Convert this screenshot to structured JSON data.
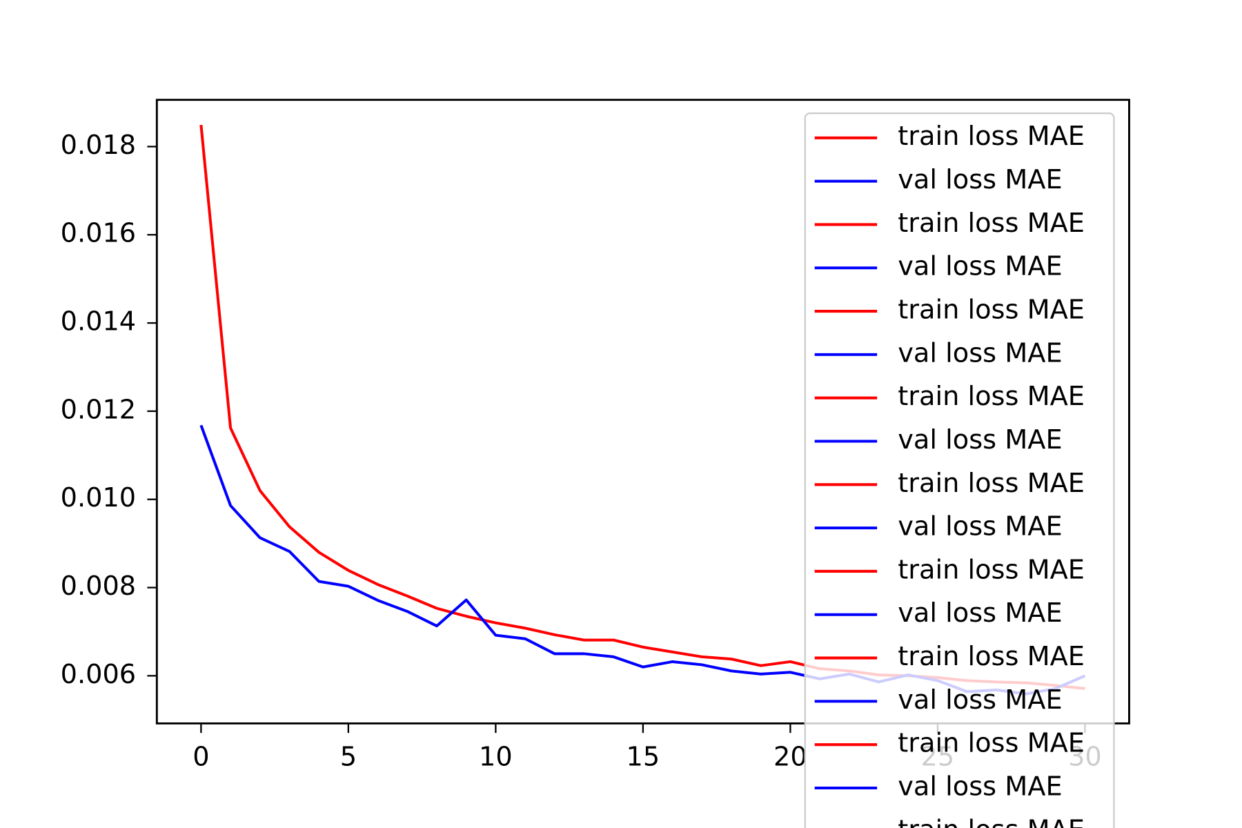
{
  "chart_data": {
    "type": "line",
    "x": [
      0,
      1,
      2,
      3,
      4,
      5,
      6,
      7,
      8,
      9,
      10,
      11,
      12,
      13,
      14,
      15,
      16,
      17,
      18,
      19,
      20,
      21,
      22,
      23,
      24,
      25,
      26,
      27,
      28,
      29,
      30
    ],
    "series": [
      {
        "name": "train loss MAE",
        "color": "#ff0000",
        "values": [
          0.01849,
          0.01162,
          0.0102,
          0.00938,
          0.0088,
          0.00839,
          0.00807,
          0.00781,
          0.00753,
          0.00735,
          0.0072,
          0.00708,
          0.00693,
          0.00681,
          0.00681,
          0.00665,
          0.00654,
          0.00643,
          0.00638,
          0.00623,
          0.00632,
          0.00616,
          0.00611,
          0.00602,
          0.006,
          0.00596,
          0.00589,
          0.00586,
          0.00584,
          0.00578,
          0.00571
        ]
      },
      {
        "name": "val loss MAE",
        "color": "#0000ff",
        "values": [
          0.01168,
          0.00986,
          0.00913,
          0.00882,
          0.00814,
          0.00803,
          0.00771,
          0.00746,
          0.00713,
          0.00772,
          0.00692,
          0.00684,
          0.0065,
          0.0065,
          0.00643,
          0.0062,
          0.00632,
          0.00625,
          0.00611,
          0.00604,
          0.00608,
          0.00593,
          0.00604,
          0.00586,
          0.00602,
          0.00589,
          0.00564,
          0.00568,
          0.00559,
          0.00571,
          0.006
        ]
      }
    ],
    "xlim": [
      -1.5,
      31.5
    ],
    "xticks": [
      0,
      5,
      10,
      15,
      20,
      25,
      30
    ],
    "ylim": [
      0.00492,
      0.01906
    ],
    "yticks": [
      0.006,
      0.008,
      {
        "value": 0.01,
        "label": "0.010"
      },
      0.012,
      0.014,
      0.016,
      0.018
    ],
    "legend": {
      "loc": "upper right",
      "entries": [
        {
          "label": "train loss MAE",
          "color": "#ff0000"
        },
        {
          "label": "val loss MAE",
          "color": "#0000ff"
        },
        {
          "label": "train loss MAE",
          "color": "#ff0000"
        },
        {
          "label": "val loss MAE",
          "color": "#0000ff"
        },
        {
          "label": "train loss MAE",
          "color": "#ff0000"
        },
        {
          "label": "val loss MAE",
          "color": "#0000ff"
        },
        {
          "label": "train loss MAE",
          "color": "#ff0000"
        },
        {
          "label": "val loss MAE",
          "color": "#0000ff"
        },
        {
          "label": "train loss MAE",
          "color": "#ff0000"
        },
        {
          "label": "val loss MAE",
          "color": "#0000ff"
        },
        {
          "label": "train loss MAE",
          "color": "#ff0000"
        },
        {
          "label": "val loss MAE",
          "color": "#0000ff"
        },
        {
          "label": "train loss MAE",
          "color": "#ff0000"
        },
        {
          "label": "val loss MAE",
          "color": "#0000ff"
        },
        {
          "label": "train loss MAE",
          "color": "#ff0000"
        },
        {
          "label": "val loss MAE",
          "color": "#0000ff"
        },
        {
          "label": "train loss MAE",
          "color": "#ff0000"
        }
      ]
    }
  }
}
